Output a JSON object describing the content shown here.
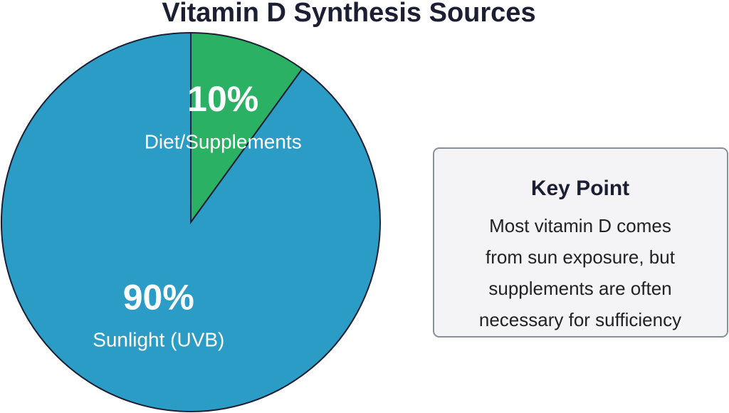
{
  "chart_data": {
    "type": "pie",
    "title": "Vitamin D Synthesis Sources",
    "categories": [
      "Sunlight (UVB)",
      "Diet/Supplements"
    ],
    "values": [
      90,
      10
    ],
    "value_labels": [
      "90%",
      "10%"
    ],
    "colors": [
      "#2b9cc6",
      "#2bb163"
    ],
    "annotation": {
      "title": "Key Point",
      "lines": [
        "Most vitamin D comes",
        "from sun exposure, but",
        "supplements are often",
        "necessary for sufficiency"
      ]
    }
  }
}
